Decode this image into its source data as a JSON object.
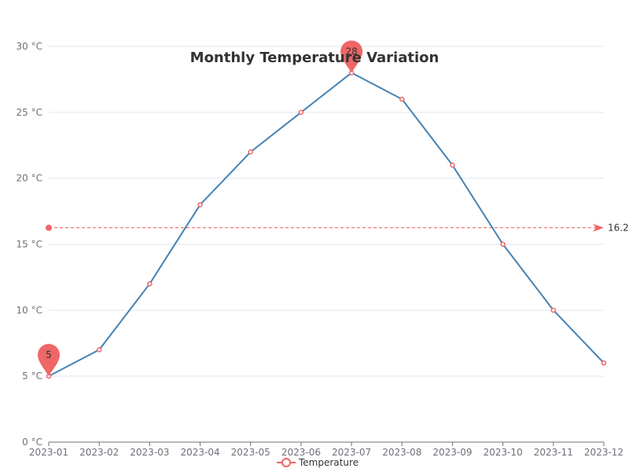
{
  "chart_data": {
    "type": "line",
    "title": "Monthly Temperature Variation",
    "xlabel": "",
    "ylabel": "",
    "categories": [
      "2023-01",
      "2023-02",
      "2023-03",
      "2023-04",
      "2023-05",
      "2023-06",
      "2023-07",
      "2023-08",
      "2023-09",
      "2023-10",
      "2023-11",
      "2023-12"
    ],
    "series": [
      {
        "name": "Temperature",
        "values": [
          5,
          7,
          12,
          18,
          22,
          25,
          28,
          26,
          21,
          15,
          10,
          6
        ],
        "color": "#4682b4",
        "marker_color": "#ee6666"
      }
    ],
    "ylim": [
      0,
      30
    ],
    "yticks": [
      0,
      5,
      10,
      15,
      20,
      25,
      30
    ],
    "y_unit_suffix": " °C",
    "grid": true,
    "legend": "bottom",
    "mark_points": [
      {
        "type": "min",
        "category": "2023-01",
        "value": 5,
        "label": "5"
      },
      {
        "type": "max",
        "category": "2023-07",
        "value": 28,
        "label": "28"
      }
    ],
    "mark_line": {
      "type": "average",
      "value": 16.25,
      "label": "16.25"
    },
    "mark_color": "#ee6666"
  }
}
